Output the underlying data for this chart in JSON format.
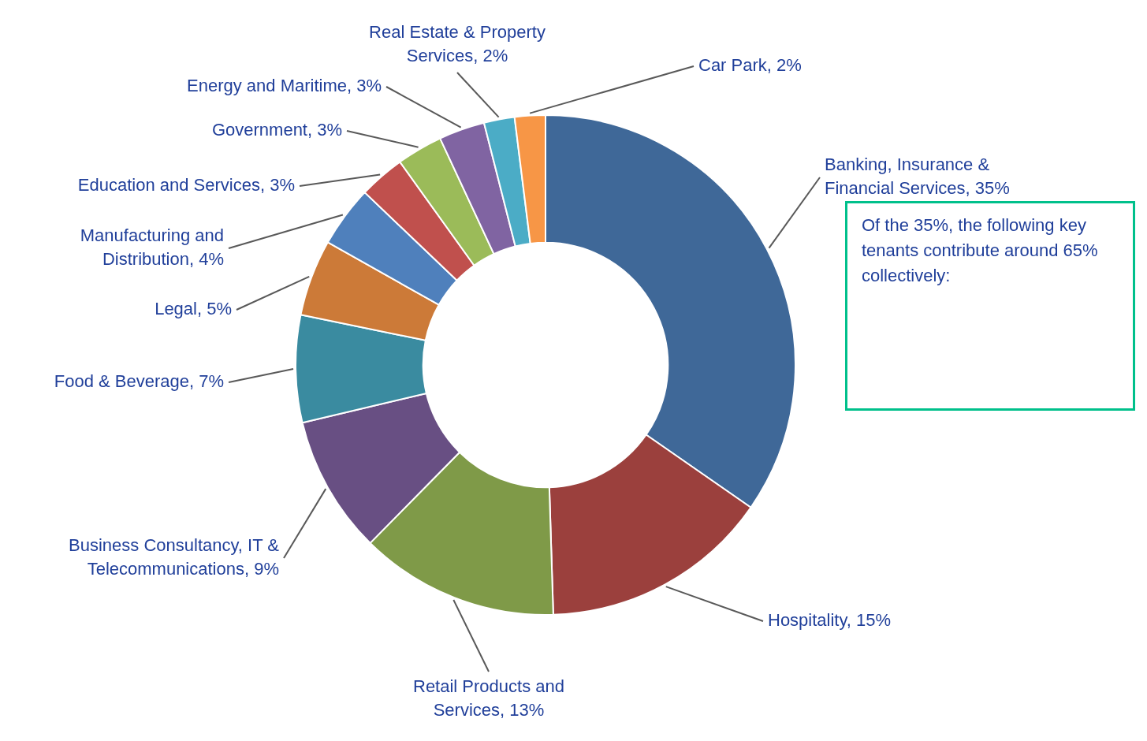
{
  "chart_data": {
    "type": "donut",
    "categories": [
      "Banking, Insurance & Financial Services",
      "Hospitality",
      "Retail Products and Services",
      "Business Consultancy, IT & Telecommunications",
      "Food & Beverage",
      "Legal",
      "Manufacturing and Distribution",
      "Education and Services",
      "Government",
      "Energy and Maritime",
      "Real Estate & Property Services",
      "Car Park"
    ],
    "values": [
      35,
      15,
      13,
      9,
      7,
      5,
      4,
      3,
      3,
      3,
      2,
      2
    ],
    "value_labels": [
      "35%",
      "15%",
      "13%",
      "9%",
      "7%",
      "5%",
      "4%",
      "3%",
      "3%",
      "3%",
      "2%",
      "2%"
    ],
    "colors": [
      "#3f6898",
      "#9b403d",
      "#7f9a48",
      "#684f83",
      "#3a8ba0",
      "#cc7a38",
      "#4f80bc",
      "#c0504d",
      "#9bbb59",
      "#8064a2",
      "#4bacc6",
      "#f79646"
    ],
    "annotations": [
      "Of the 35%, the following key tenants contribute around 65% collectively:"
    ]
  }
}
